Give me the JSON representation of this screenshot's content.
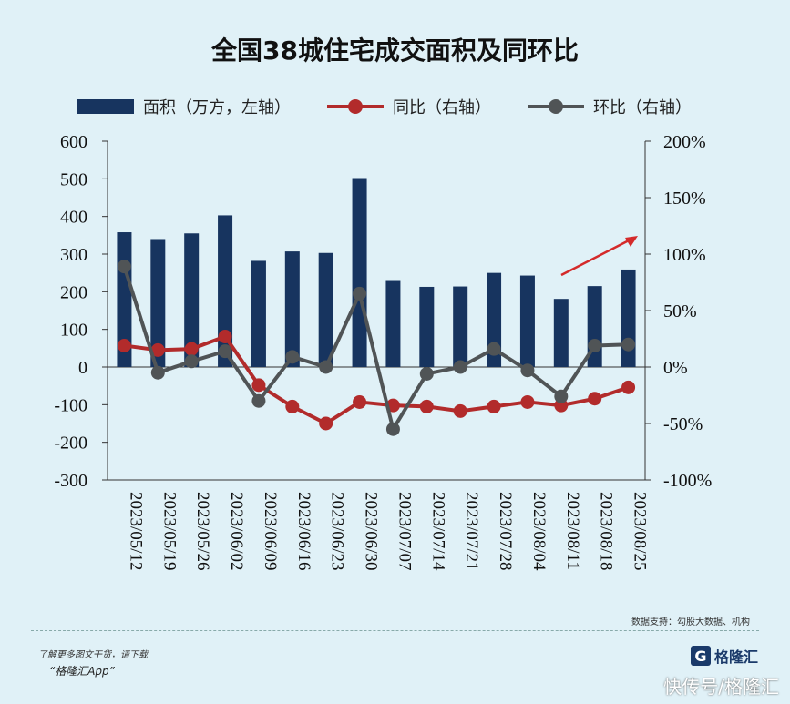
{
  "title": "全国38城住宅成交面积及同环比",
  "legend": {
    "area_label": "面积（万方，左轴）",
    "yoy_label": "同比（右轴）",
    "mom_label": "环比（右轴）"
  },
  "colors": {
    "bar": "#17345f",
    "yoy": "#b22b2b",
    "mom": "#505456",
    "arrow": "#d42a2a",
    "background": "#e0f1f7"
  },
  "chart_data": {
    "type": "bar",
    "categories": [
      "2023/05/12",
      "2023/05/19",
      "2023/05/26",
      "2023/06/02",
      "2023/06/09",
      "2023/06/16",
      "2023/06/23",
      "2023/06/30",
      "2023/07/07",
      "2023/07/14",
      "2023/07/21",
      "2023/07/28",
      "2023/08/04",
      "2023/08/11",
      "2023/08/18",
      "2023/08/25"
    ],
    "series": [
      {
        "name": "面积（万方，左轴）",
        "type": "bar",
        "axis": "left",
        "values": [
          358,
          340,
          355,
          403,
          282,
          307,
          303,
          502,
          231,
          213,
          214,
          250,
          243,
          181,
          215,
          259
        ]
      },
      {
        "name": "同比（右轴）",
        "type": "line",
        "axis": "right",
        "values": [
          19,
          15,
          16,
          27,
          -16,
          -35,
          -50,
          -31,
          -34,
          -35,
          -39,
          -35,
          -31,
          -34,
          -28,
          -18
        ]
      },
      {
        "name": "环比（右轴）",
        "type": "line",
        "axis": "right",
        "values": [
          89,
          -5,
          5,
          14,
          -30,
          9,
          0,
          65,
          -55,
          -6,
          0,
          16,
          -3,
          -26,
          19,
          20
        ]
      }
    ],
    "left_axis": {
      "ylim": [
        -300,
        600
      ],
      "ticks": [
        "600",
        "500",
        "400",
        "300",
        "200",
        "100",
        "0",
        "-100",
        "-200",
        "-300"
      ]
    },
    "right_axis": {
      "ylim": [
        -100,
        200
      ],
      "ticks": [
        "200%",
        "150%",
        "100%",
        "50%",
        "0%",
        "-50%",
        "-100%"
      ]
    },
    "annotation": "up-arrow"
  },
  "footer": {
    "source": "数据支持：勾股大数据、机构",
    "download_note": "了解更多图文干货，请下载",
    "app_name": "“格隆汇App”",
    "logo_mark": "G",
    "logo_text": "格隆汇",
    "watermark": "快传号/格隆汇"
  }
}
